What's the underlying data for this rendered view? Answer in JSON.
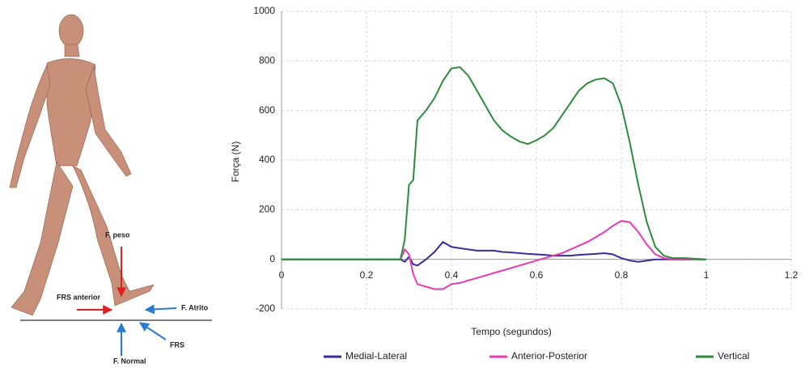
{
  "diagram": {
    "labels": [
      "F. peso",
      "FRS anterior",
      "F. Atrito",
      "FRS",
      "F. Normal"
    ]
  },
  "chart_data": {
    "type": "line",
    "x_label": "Tempo (segundos)",
    "y_label": "Força (N)",
    "x": [
      0,
      0.1,
      0.2,
      0.28,
      0.29,
      0.3,
      0.31,
      0.32,
      0.34,
      0.36,
      0.38,
      0.4,
      0.42,
      0.44,
      0.46,
      0.48,
      0.5,
      0.52,
      0.54,
      0.56,
      0.58,
      0.6,
      0.62,
      0.64,
      0.66,
      0.68,
      0.7,
      0.72,
      0.74,
      0.76,
      0.78,
      0.8,
      0.82,
      0.84,
      0.86,
      0.88,
      0.9,
      0.92,
      0.95,
      1.0
    ],
    "series": [
      {
        "name": "Medial-Lateral",
        "color": "#3b2c9e",
        "values": [
          0,
          0,
          0,
          0,
          -10,
          10,
          -20,
          -25,
          0,
          30,
          70,
          50,
          45,
          40,
          35,
          35,
          35,
          30,
          28,
          25,
          22,
          20,
          18,
          15,
          15,
          15,
          18,
          20,
          22,
          25,
          20,
          5,
          -5,
          -10,
          -5,
          0,
          0,
          0,
          0,
          0
        ]
      },
      {
        "name": "Anterior-Posterior",
        "color": "#e83ab4",
        "values": [
          0,
          0,
          0,
          0,
          40,
          20,
          -60,
          -100,
          -110,
          -120,
          -120,
          -100,
          -95,
          -85,
          -75,
          -65,
          -55,
          -45,
          -35,
          -25,
          -15,
          -5,
          5,
          15,
          25,
          40,
          55,
          70,
          90,
          110,
          135,
          155,
          150,
          110,
          60,
          20,
          5,
          0,
          0,
          0
        ]
      },
      {
        "name": "Vertical",
        "color": "#2e8b3e",
        "values": [
          0,
          0,
          0,
          0,
          80,
          300,
          320,
          560,
          600,
          650,
          720,
          770,
          775,
          740,
          680,
          620,
          560,
          520,
          495,
          475,
          465,
          480,
          500,
          530,
          580,
          630,
          680,
          710,
          725,
          730,
          710,
          620,
          470,
          300,
          150,
          50,
          15,
          5,
          5,
          0
        ]
      }
    ],
    "xlim": [
      0,
      1.2
    ],
    "xticks": [
      0,
      0.2,
      0.4,
      0.6,
      0.8,
      1,
      1.2
    ],
    "ylim": [
      -200,
      1000
    ],
    "yticks": [
      -200,
      0,
      200,
      400,
      600,
      800,
      1000
    ],
    "grid": true,
    "legend": "bottom"
  }
}
